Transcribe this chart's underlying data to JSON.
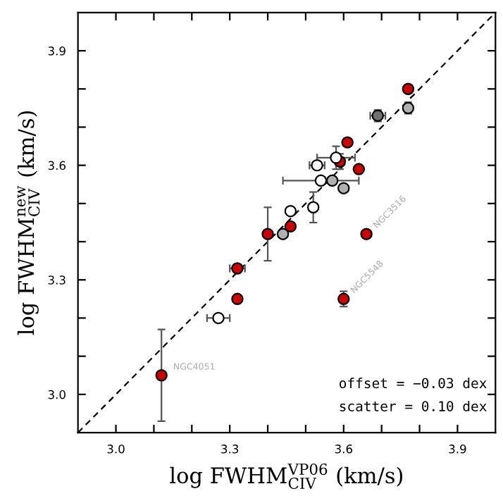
{
  "chart_data": {
    "type": "scatter",
    "xlabel": "log FWHM$^{VP06}$$_{CIV}$ (km/s)",
    "ylabel": "log FWHM$^{new}$$_{CIV}$ (km/s)",
    "xlim": [
      2.9,
      4.0
    ],
    "ylim": [
      2.9,
      4.0
    ],
    "xticks": [
      {
        "value": 3.0,
        "label": "3.0"
      },
      {
        "value": 3.1,
        "label": null
      },
      {
        "value": 3.2,
        "label": null
      },
      3.3,
      {
        "value": 3.4,
        "label": null
      },
      {
        "value": 3.5,
        "label": null
      },
      3.6,
      {
        "value": 3.7,
        "label": null
      },
      {
        "value": 3.8,
        "label": null
      },
      3.9
    ],
    "yticks": [
      {
        "value": 3.0,
        "label": "3.0"
      },
      {
        "value": 3.1,
        "label": null
      },
      {
        "value": 3.2,
        "label": null
      },
      3.3,
      {
        "value": 3.4,
        "label": null
      },
      {
        "value": 3.5,
        "label": null
      },
      3.6,
      {
        "value": 3.7,
        "label": null
      },
      {
        "value": 3.8,
        "label": null
      },
      3.9
    ],
    "grid": false,
    "legend": false,
    "marker": "circle",
    "series": [
      {
        "type": "line",
        "color": "#000000",
        "line_style": "dashed",
        "marker": "none",
        "x": [
          2.9,
          4.0
        ],
        "values": [
          2.9,
          4.0
        ]
      },
      {
        "color": "#cc0000",
        "x": [
          3.77,
          3.61,
          3.59,
          3.64,
          3.46,
          3.4,
          3.32,
          3.66,
          3.32,
          3.6,
          3.12
        ],
        "values": [
          3.8,
          3.66,
          3.61,
          3.59,
          3.44,
          3.42,
          3.33,
          3.42,
          3.25,
          3.25,
          3.05
        ],
        "errors": [
          null,
          null,
          0.02,
          null,
          null,
          0.07,
          null,
          null,
          null,
          0.02,
          0.12
        ],
        "xerrors": [
          null,
          null,
          null,
          null,
          null,
          null,
          0.02,
          null,
          null,
          null,
          null
        ]
      },
      {
        "color": "#ffffff",
        "x": [
          3.58,
          3.53,
          3.54,
          3.52,
          3.46,
          3.27
        ],
        "values": [
          3.62,
          3.6,
          3.56,
          3.49,
          3.48,
          3.2
        ],
        "errors": [
          0.03,
          null,
          null,
          0.04,
          null,
          null
        ],
        "xerrors": [
          0.05,
          0.02,
          0.1,
          null,
          null,
          0.03
        ]
      },
      {
        "color": "#b0b0b0",
        "x": [
          3.77,
          3.57,
          3.6,
          3.44
        ],
        "values": [
          3.75,
          3.56,
          3.54,
          3.42
        ],
        "errors": [
          0.015,
          null,
          null,
          null
        ],
        "xerrors": [
          null,
          null,
          null,
          null
        ]
      },
      {
        "color": "#707070",
        "x": [
          3.69
        ],
        "values": [
          3.73
        ],
        "errors": [
          0.015
        ],
        "xerrors": [
          0.02
        ]
      }
    ],
    "annotations": [
      {
        "text": "NGC3516",
        "x": 3.66,
        "y": 3.42
      },
      {
        "text": "NGC5548",
        "x": 3.6,
        "y": 3.25
      },
      {
        "text": "NGC4051",
        "x": 3.12,
        "y": 3.05
      },
      "offset = −0.03 dex",
      "scatter = 0.10 dex"
    ]
  }
}
